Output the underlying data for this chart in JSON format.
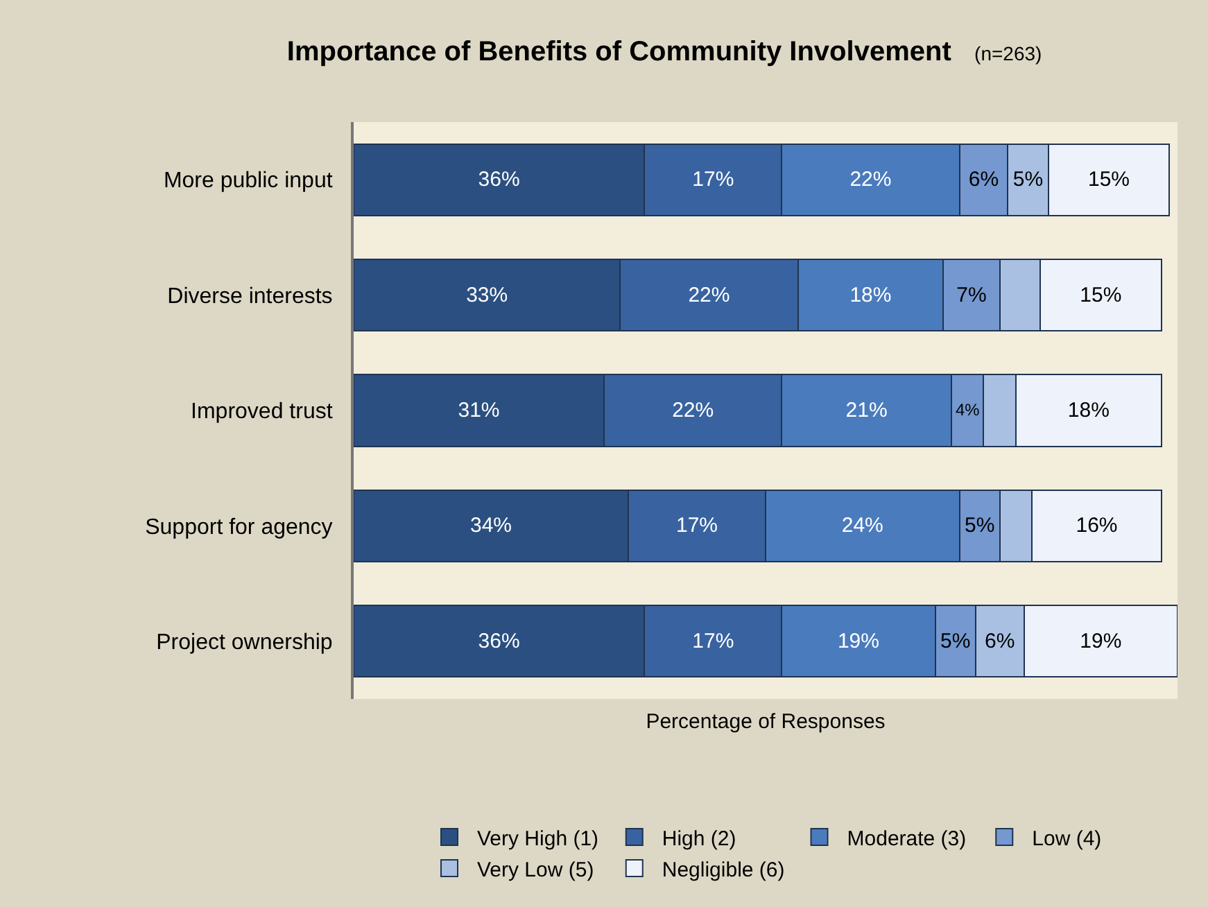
{
  "chart_data": {
    "type": "bar",
    "orientation": "horizontal",
    "stacked": true,
    "title": "Importance of Benefits of Community Involvement",
    "subtitle": "(n=263)",
    "xlabel": "Percentage of Responses",
    "categories": [
      "More public input",
      "Diverse interests",
      "Improved trust",
      "Support for agency",
      "Project ownership"
    ],
    "series": [
      {
        "name": "Very High (1)",
        "color": "#2b4f80",
        "values": [
          36,
          33,
          31,
          34,
          36
        ],
        "value_labels": [
          "36%",
          "33%",
          "31%",
          "34%",
          "36%"
        ]
      },
      {
        "name": "High (2)",
        "color": "#3863a0",
        "values": [
          17,
          22,
          22,
          17,
          17
        ],
        "value_labels": [
          "17%",
          "22%",
          "22%",
          "17%",
          "17%"
        ]
      },
      {
        "name": "Moderate (3)",
        "color": "#4a7bbd",
        "values": [
          22,
          18,
          21,
          24,
          19
        ],
        "value_labels": [
          "22%",
          "18%",
          "21%",
          "24%",
          "19%"
        ]
      },
      {
        "name": "Low (4)",
        "color": "#7498cf",
        "values": [
          6,
          7,
          4,
          5,
          5
        ],
        "value_labels": [
          "6%",
          "7%",
          "4%",
          "5%",
          "5%"
        ]
      },
      {
        "name": "Very Low (5)",
        "color": "#a9c0e3",
        "values": [
          5,
          5,
          4,
          4,
          6
        ],
        "value_labels": [
          "5%",
          null,
          null,
          null,
          "6%"
        ]
      },
      {
        "name": "Negligible (6)",
        "color": "#eef2fa",
        "values": [
          15,
          15,
          18,
          16,
          19
        ],
        "value_labels": [
          "15%",
          "15%",
          "18%",
          "16%",
          "19%"
        ]
      }
    ],
    "xlim": [
      0,
      102
    ],
    "tick_labels": "y",
    "grid": false,
    "legend": "bottom"
  }
}
